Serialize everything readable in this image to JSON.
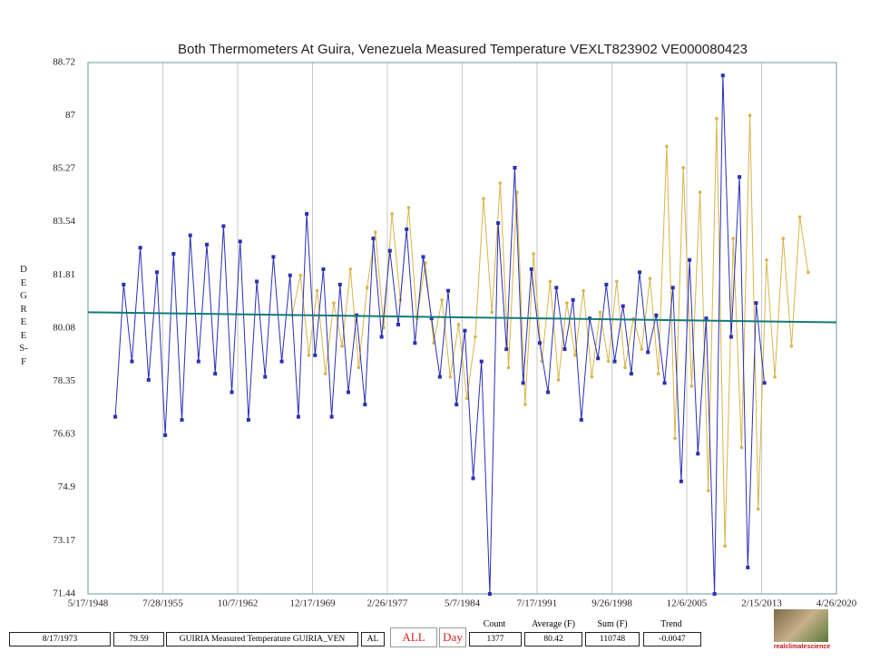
{
  "chart_data": {
    "type": "line",
    "title": "Both Thermometers At Guira, Venezuela Measured Temperature VEXLT823902 VE000080423",
    "y_label": "DEGREES-F",
    "xlim": [
      1948.375,
      2020.32
    ],
    "xticks": [
      {
        "value": 1948.375,
        "label": "5/17/1948"
      },
      {
        "value": 1955.57,
        "label": "7/28/1955"
      },
      {
        "value": 1962.77,
        "label": "10/7/1962"
      },
      {
        "value": 1969.96,
        "label": "12/17/1969"
      },
      {
        "value": 1977.15,
        "label": "2/26/1977"
      },
      {
        "value": 1984.35,
        "label": "5/7/1984"
      },
      {
        "value": 1991.54,
        "label": "7/17/1991"
      },
      {
        "value": 1998.74,
        "label": "9/26/1998"
      },
      {
        "value": 2005.93,
        "label": "12/6/2005"
      },
      {
        "value": 2013.13,
        "label": "2/15/2013"
      },
      {
        "value": 2020.32,
        "label": "4/26/2020"
      }
    ],
    "ylim": [
      71.44,
      88.72
    ],
    "yticks": [
      71.44,
      73.17,
      74.9,
      76.63,
      78.35,
      80.08,
      81.81,
      83.54,
      85.27,
      87,
      88.72
    ],
    "grid": true,
    "series": [
      {
        "color": "#d8b448",
        "x": [
          1968.0,
          1968.8,
          1969.6,
          1970.4,
          1971.2,
          1972.0,
          1972.8,
          1973.6,
          1974.4,
          1975.2,
          1976.0,
          1976.8,
          1977.6,
          1978.4,
          1979.2,
          1980.0,
          1980.8,
          1981.6,
          1982.4,
          1983.2,
          1984.0,
          1984.8,
          1985.6,
          1986.4,
          1987.2,
          1988.0,
          1988.8,
          1989.6,
          1990.4,
          1991.2,
          1992.0,
          1992.8,
          1993.6,
          1994.4,
          1995.2,
          1996.0,
          1996.8,
          1997.6,
          1998.4,
          1999.2,
          2000.0,
          2000.8,
          2001.6,
          2002.4,
          2003.2,
          2004.0,
          2004.8,
          2005.6,
          2006.4,
          2007.2,
          2008.0,
          2008.8,
          2009.6,
          2010.4,
          2011.2,
          2012.0,
          2012.8,
          2013.6,
          2014.4,
          2015.2,
          2016.0,
          2016.8,
          2017.6
        ],
        "values": [
          80.5,
          81.8,
          79.2,
          81.3,
          78.6,
          80.9,
          79.5,
          82.0,
          78.8,
          81.4,
          83.2,
          80.1,
          83.8,
          81.0,
          84.0,
          80.4,
          82.2,
          79.6,
          81.0,
          78.5,
          80.2,
          77.8,
          79.8,
          84.3,
          80.6,
          84.8,
          78.8,
          84.5,
          77.6,
          82.5,
          79.0,
          81.6,
          78.4,
          80.9,
          79.2,
          81.3,
          78.5,
          80.6,
          79.0,
          81.6,
          78.8,
          80.4,
          79.4,
          81.7,
          78.6,
          86.0,
          76.5,
          85.3,
          78.2,
          84.5,
          74.8,
          86.9,
          73.0,
          83.0,
          76.2,
          87.0,
          74.2,
          82.3,
          78.5,
          83.0,
          79.5,
          83.7,
          81.9
        ]
      },
      {
        "color": "#2b2fb3",
        "x": [
          1951.0,
          1951.8,
          1952.6,
          1953.4,
          1954.2,
          1955.0,
          1955.8,
          1956.6,
          1957.4,
          1958.2,
          1959.0,
          1959.8,
          1960.6,
          1961.4,
          1962.2,
          1963.0,
          1963.8,
          1964.6,
          1965.4,
          1966.2,
          1967.0,
          1967.8,
          1968.6,
          1969.4,
          1970.2,
          1971.0,
          1971.8,
          1972.6,
          1973.4,
          1974.2,
          1975.0,
          1975.8,
          1976.6,
          1977.4,
          1978.2,
          1979.0,
          1979.8,
          1980.6,
          1981.4,
          1982.2,
          1983.0,
          1983.8,
          1984.6,
          1985.4,
          1986.2,
          1987.0,
          1987.8,
          1988.6,
          1989.4,
          1990.2,
          1991.0,
          1991.8,
          1992.6,
          1993.4,
          1994.2,
          1995.0,
          1995.8,
          1996.6,
          1997.4,
          1998.2,
          1999.0,
          1999.8,
          2000.6,
          2001.4,
          2002.2,
          2003.0,
          2003.8,
          2004.6,
          2005.4,
          2006.2,
          2007.0,
          2007.8,
          2008.6,
          2009.4,
          2010.2,
          2011.0,
          2011.8,
          2012.6,
          2013.4
        ],
        "values": [
          77.2,
          81.5,
          79.0,
          82.7,
          78.4,
          81.9,
          76.6,
          82.5,
          77.1,
          83.1,
          79.0,
          82.8,
          78.6,
          83.4,
          78.0,
          82.9,
          77.1,
          81.6,
          78.5,
          82.4,
          79.0,
          81.8,
          77.2,
          83.8,
          79.2,
          82.0,
          77.2,
          81.5,
          78.0,
          80.5,
          77.6,
          83.0,
          79.8,
          82.6,
          80.2,
          83.3,
          79.6,
          82.4,
          80.4,
          78.5,
          81.3,
          77.6,
          80.0,
          75.2,
          79.0,
          71.44,
          83.5,
          79.4,
          85.3,
          78.3,
          82.0,
          79.6,
          78.0,
          81.4,
          79.4,
          81.0,
          77.1,
          80.4,
          79.1,
          81.5,
          79.0,
          80.8,
          78.6,
          81.9,
          79.3,
          80.5,
          78.3,
          81.4,
          75.1,
          82.3,
          76.0,
          80.4,
          71.44,
          88.3,
          79.8,
          85.0,
          72.3,
          80.9,
          78.3
        ]
      }
    ],
    "trend_line": {
      "color": "#127b7b",
      "x": [
        1948.375,
        2020.32
      ],
      "values": [
        80.6,
        80.27
      ]
    }
  },
  "status_bar": {
    "date": "8/17/1973",
    "value": "79.59",
    "station": "GUIRIA Measured Temperature GUIRIA_VEN",
    "code": "AL",
    "all_button": "ALL",
    "day_button": "Day",
    "count_label": "Count",
    "count": "1377",
    "average_label": "Average (F)",
    "average": "80.42",
    "sum_label": "Sum (F)",
    "sum": "110748",
    "trend_label": "Trend",
    "trend": "-0.0047",
    "logo_text": "realclimatescience"
  }
}
